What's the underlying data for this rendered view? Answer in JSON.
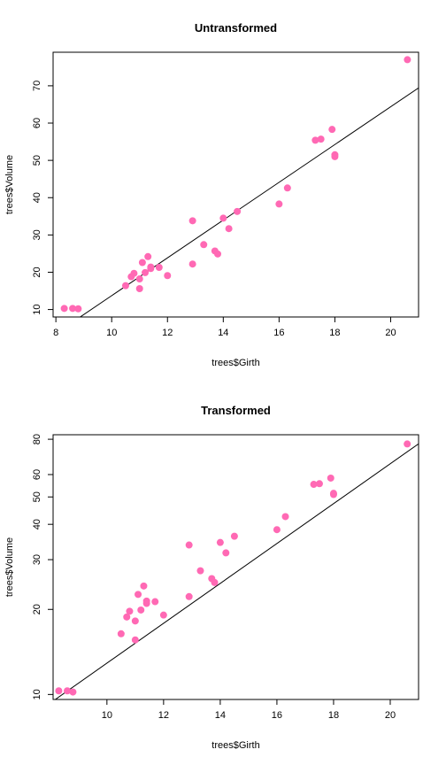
{
  "chart_data": [
    {
      "type": "scatter",
      "title": "Untransformed",
      "xlabel": "trees$Girth",
      "ylabel": "trees$Volume",
      "xlim": [
        7.9,
        21.0
      ],
      "ylim": [
        8.0,
        79.0
      ],
      "log_scale": false,
      "xticks": [
        8,
        10,
        12,
        14,
        16,
        18,
        20
      ],
      "yticks": [
        10,
        20,
        30,
        40,
        50,
        60,
        70
      ],
      "point_color": "#ff69b4",
      "line": {
        "intercept": -36.94,
        "slope": 5.066,
        "color": "#000000"
      },
      "points": [
        [
          8.3,
          10.3
        ],
        [
          8.6,
          10.3
        ],
        [
          8.8,
          10.2
        ],
        [
          10.5,
          16.4
        ],
        [
          10.7,
          18.8
        ],
        [
          10.8,
          19.7
        ],
        [
          11.0,
          15.6
        ],
        [
          11.0,
          18.2
        ],
        [
          11.1,
          22.6
        ],
        [
          11.2,
          19.9
        ],
        [
          11.3,
          24.2
        ],
        [
          11.4,
          21.0
        ],
        [
          11.4,
          21.4
        ],
        [
          11.7,
          21.3
        ],
        [
          12.0,
          19.1
        ],
        [
          12.9,
          22.2
        ],
        [
          12.9,
          33.8
        ],
        [
          13.3,
          27.4
        ],
        [
          13.7,
          25.7
        ],
        [
          13.8,
          24.9
        ],
        [
          14.0,
          34.5
        ],
        [
          14.2,
          31.7
        ],
        [
          14.5,
          36.3
        ],
        [
          16.0,
          38.3
        ],
        [
          16.3,
          42.6
        ],
        [
          17.3,
          55.4
        ],
        [
          17.5,
          55.7
        ],
        [
          17.9,
          58.3
        ],
        [
          18.0,
          51.5
        ],
        [
          18.0,
          51.0
        ],
        [
          20.6,
          77.0
        ]
      ]
    },
    {
      "type": "scatter",
      "title": "Transformed",
      "xlabel": "trees$Girth",
      "ylabel": "trees$Volume",
      "xlim": [
        8.1,
        21.0
      ],
      "ylim": [
        9.6,
        83.0
      ],
      "log_scale": true,
      "xticks": [
        10,
        12,
        14,
        16,
        18,
        20
      ],
      "yticks": [
        10,
        20,
        30,
        40,
        50,
        60,
        80
      ],
      "point_color": "#ff69b4",
      "line": {
        "log_intercept": -2.353,
        "log_slope": 2.2,
        "color": "#000000"
      },
      "points": [
        [
          8.3,
          10.3
        ],
        [
          8.6,
          10.3
        ],
        [
          8.8,
          10.2
        ],
        [
          10.5,
          16.4
        ],
        [
          10.7,
          18.8
        ],
        [
          10.8,
          19.7
        ],
        [
          11.0,
          15.6
        ],
        [
          11.0,
          18.2
        ],
        [
          11.1,
          22.6
        ],
        [
          11.2,
          19.9
        ],
        [
          11.3,
          24.2
        ],
        [
          11.4,
          21.0
        ],
        [
          11.4,
          21.4
        ],
        [
          11.7,
          21.3
        ],
        [
          12.0,
          19.1
        ],
        [
          12.9,
          22.2
        ],
        [
          12.9,
          33.8
        ],
        [
          13.3,
          27.4
        ],
        [
          13.7,
          25.7
        ],
        [
          13.8,
          24.9
        ],
        [
          14.0,
          34.5
        ],
        [
          14.2,
          31.7
        ],
        [
          14.5,
          36.3
        ],
        [
          16.0,
          38.3
        ],
        [
          16.3,
          42.6
        ],
        [
          17.3,
          55.4
        ],
        [
          17.5,
          55.7
        ],
        [
          17.9,
          58.3
        ],
        [
          18.0,
          51.5
        ],
        [
          18.0,
          51.0
        ],
        [
          20.6,
          77.0
        ]
      ]
    }
  ]
}
